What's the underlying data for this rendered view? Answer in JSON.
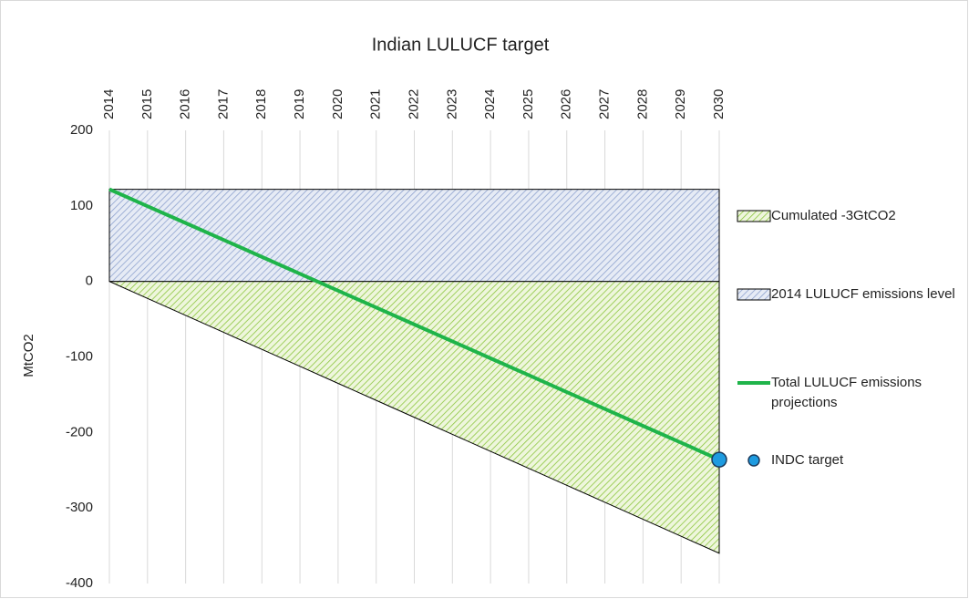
{
  "chart_data": {
    "type": "line",
    "title": "Indian LULUCF target",
    "y_label": "MtCO2",
    "categories": [
      "2014",
      "2015",
      "2016",
      "2017",
      "2018",
      "2019",
      "2020",
      "2021",
      "2022",
      "2023",
      "2024",
      "2025",
      "2026",
      "2027",
      "2028",
      "2029",
      "2030"
    ],
    "ylim": [
      -400,
      200
    ],
    "yticks": [
      -400,
      -300,
      -200,
      -100,
      0,
      100,
      200
    ],
    "grid": true,
    "legend": "right",
    "series": [
      {
        "name": "Cumulated -3GtCO2",
        "type": "area",
        "color": "#8cc63f",
        "values": [
          0,
          -22.5,
          -45,
          -67.5,
          -90,
          -112.5,
          -135,
          -157.5,
          -180,
          -202.5,
          -225,
          -247.5,
          -270,
          -292.5,
          -315,
          -337.5,
          -360
        ]
      },
      {
        "name": "2014 LULUCF emissions level",
        "type": "area",
        "color": "#7f96c8",
        "values": [
          122,
          122,
          122,
          122,
          122,
          122,
          122,
          122,
          122,
          122,
          122,
          122,
          122,
          122,
          122,
          122,
          122
        ]
      },
      {
        "name": "Total LULUCF emissions projections",
        "type": "line",
        "color": "#1fb44a",
        "values": [
          122,
          99.6,
          77.3,
          54.9,
          32.5,
          10.1,
          -12.3,
          -34.6,
          -57,
          -79.4,
          -101.8,
          -124.1,
          -146.5,
          -168.9,
          -191.3,
          -213.6,
          -236
        ]
      },
      {
        "name": "INDC target",
        "type": "scatter",
        "color": "#1e9be0",
        "values": [
          null,
          null,
          null,
          null,
          null,
          null,
          null,
          null,
          null,
          null,
          null,
          null,
          null,
          null,
          null,
          null,
          -236
        ]
      }
    ]
  }
}
